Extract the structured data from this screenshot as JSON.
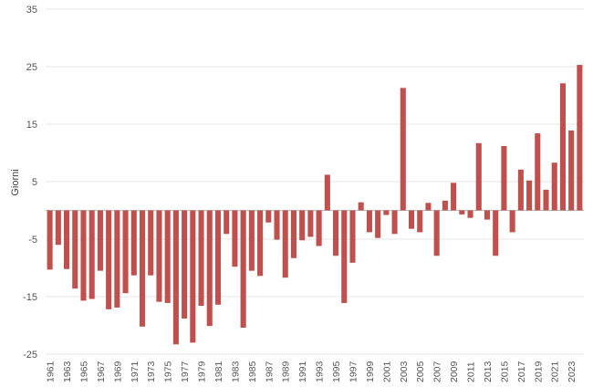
{
  "chart_data": {
    "type": "bar",
    "ylabel": "Giorni",
    "ylim": [
      -25,
      35
    ],
    "yticks": [
      35,
      25,
      15,
      5,
      -5,
      -15,
      -25
    ],
    "grid": true,
    "bar_color": "#c0504d",
    "x": [
      1961,
      1962,
      1963,
      1964,
      1965,
      1966,
      1967,
      1968,
      1969,
      1970,
      1971,
      1972,
      1973,
      1974,
      1975,
      1976,
      1977,
      1978,
      1979,
      1980,
      1981,
      1982,
      1983,
      1984,
      1985,
      1986,
      1987,
      1988,
      1989,
      1990,
      1991,
      1992,
      1993,
      1994,
      1995,
      1996,
      1997,
      1998,
      1999,
      2000,
      2001,
      2002,
      2003,
      2004,
      2005,
      2006,
      2007,
      2008,
      2009,
      2010,
      2011,
      2012,
      2013,
      2014,
      2015,
      2016,
      2017,
      2018,
      2019,
      2020,
      2021,
      2022,
      2023,
      2024
    ],
    "x_tick_labels": [
      "1961",
      "1963",
      "1965",
      "1967",
      "1969",
      "1971",
      "1973",
      "1975",
      "1977",
      "1979",
      "1981",
      "1983",
      "1985",
      "1987",
      "1989",
      "1991",
      "1993",
      "1995",
      "1997",
      "1999",
      "2001",
      "2003",
      "2005",
      "2007",
      "2009",
      "2011",
      "2013",
      "2015",
      "2017",
      "2019",
      "2021",
      "2023"
    ],
    "values": [
      -10.3,
      -6,
      -10.2,
      -13.6,
      -15.7,
      -15.4,
      -10.5,
      -17.2,
      -16.9,
      -14.4,
      -11.3,
      -20.2,
      -11.3,
      -15.9,
      -16.1,
      -23.3,
      -18.8,
      -23,
      -16.6,
      -20.1,
      -16.4,
      -4.1,
      -9.8,
      -20.4,
      -10.5,
      -11.4,
      -2.1,
      -5.1,
      -11.7,
      -8.3,
      -5.2,
      -4.6,
      -6.2,
      6.2,
      -7.9,
      -16.1,
      -9.1,
      1.4,
      -3.8,
      -4.8,
      -0.8,
      -4.1,
      21.3,
      -3.2,
      -3.8,
      1.3,
      -7.9,
      1.7,
      4.8,
      -0.7,
      -1.3,
      11.7,
      -1.6,
      -7.9,
      11.2,
      -3.8,
      7.1,
      5.2,
      13.4,
      3.6,
      8.3,
      22.1,
      13.9,
      25.3
    ]
  }
}
